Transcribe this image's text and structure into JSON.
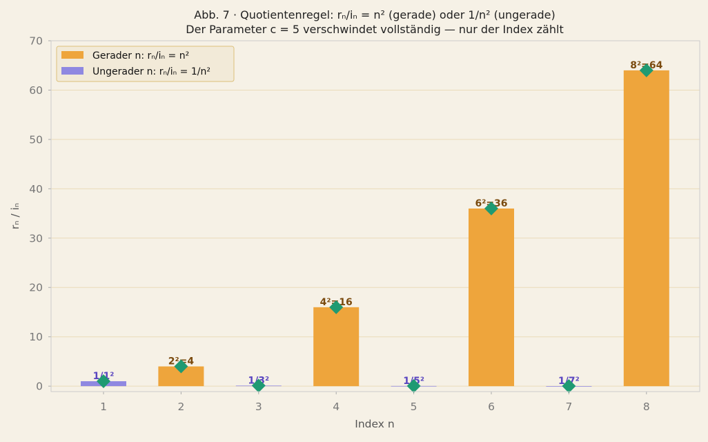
{
  "chart_data": {
    "type": "bar",
    "title": "Abb. 7 · Quotientenregel: rₙ/iₙ = n² (gerade) oder 1/n² (ungerade)",
    "subtitle": "Der Parameter c = 5 verschwindet vollständig — nur der Index zählt",
    "xlabel": "Index n",
    "ylabel": "rₙ / iₙ",
    "ylim": [
      -1.1,
      70
    ],
    "yticks": [
      0,
      10,
      20,
      30,
      40,
      50,
      60,
      70
    ],
    "grid": true,
    "legend_position": "top-left",
    "categories": [
      "1",
      "2",
      "3",
      "4",
      "5",
      "6",
      "7",
      "8"
    ],
    "series": [
      {
        "name": "Gerader n: rₙ/iₙ = n²",
        "color": "#eea53c",
        "points": [
          {
            "x": 2,
            "y": 4,
            "label": "2²=4"
          },
          {
            "x": 4,
            "y": 16,
            "label": "4²=16"
          },
          {
            "x": 6,
            "y": 36,
            "label": "6²=36"
          },
          {
            "x": 8,
            "y": 64,
            "label": "8²=64"
          }
        ]
      },
      {
        "name": "Ungerader n: rₙ/iₙ = 1/n²",
        "color": "#8f88e1",
        "points": [
          {
            "x": 1,
            "y": 1,
            "label": "1/1²"
          },
          {
            "x": 3,
            "y": 0.111,
            "label": "1/3²"
          },
          {
            "x": 5,
            "y": 0.04,
            "label": "1/5²"
          },
          {
            "x": 7,
            "y": 0.0204,
            "label": "1/7²"
          }
        ]
      }
    ],
    "markers": {
      "shape": "diamond",
      "color": "#1f9a72",
      "values": [
        1,
        4,
        0.111,
        16,
        0.04,
        36,
        0.0204,
        64
      ]
    },
    "colors": {
      "even_label": "#7a4a0e",
      "odd_label": "#5a46c0",
      "grid": "#eadbb9",
      "tick_text": "#777777",
      "frame": "#cccccc"
    }
  }
}
